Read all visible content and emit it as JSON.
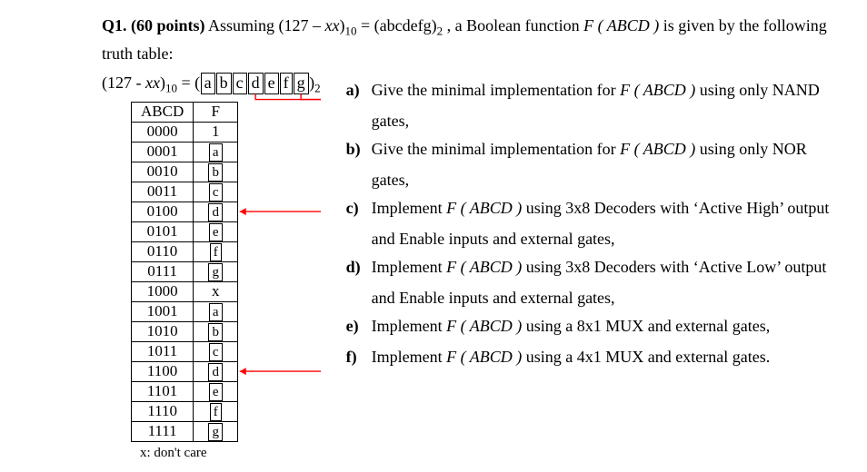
{
  "question": {
    "label": "Q1. (60 points)",
    "intro_pre": " Assuming (127 – ",
    "xx": "xx",
    "intro_mid1": ")",
    "sub1": "10",
    "intro_mid2": " = (abcdefg)",
    "sub2": "2",
    "intro_mid3": " , a Boolean function ",
    "func": "F ( ABCD )",
    "intro_post": " is given by the following truth table:"
  },
  "equation": {
    "pre": "(127 - ",
    "xx": "xx",
    "mid1": ")",
    "sub1": "10",
    "mid2": " = (",
    "letters": [
      "a",
      "b",
      "c",
      "d",
      "e",
      "f",
      "g"
    ],
    "mid3": ")",
    "sub2": "2"
  },
  "truth_table": {
    "header_left": "ABCD",
    "header_right": "F",
    "rows": [
      {
        "abcd": "0000",
        "f": "1",
        "boxed": false
      },
      {
        "abcd": "0001",
        "f": "a",
        "boxed": true
      },
      {
        "abcd": "0010",
        "f": "b",
        "boxed": true
      },
      {
        "abcd": "0011",
        "f": "c",
        "boxed": true
      },
      {
        "abcd": "0100",
        "f": "d",
        "boxed": true
      },
      {
        "abcd": "0101",
        "f": "e",
        "boxed": true
      },
      {
        "abcd": "0110",
        "f": "f",
        "boxed": true
      },
      {
        "abcd": "0111",
        "f": "g",
        "boxed": true
      },
      {
        "abcd": "1000",
        "f": "x",
        "boxed": false
      },
      {
        "abcd": "1001",
        "f": "a",
        "boxed": true
      },
      {
        "abcd": "1010",
        "f": "b",
        "boxed": true
      },
      {
        "abcd": "1011",
        "f": "c",
        "boxed": true
      },
      {
        "abcd": "1100",
        "f": "d",
        "boxed": true
      },
      {
        "abcd": "1101",
        "f": "e",
        "boxed": true
      },
      {
        "abcd": "1110",
        "f": "f",
        "boxed": true
      },
      {
        "abcd": "1111",
        "f": "g",
        "boxed": true
      }
    ],
    "footnote": "x: don't care",
    "arrow_color": "#ff0000",
    "arrow_stroke": 1.4
  },
  "parts": {
    "a": {
      "lbl": "a)",
      "line1": "Give the minimal implementation for ",
      "func": "F ( ABCD )",
      "line1b": " using only NAND",
      "line2": "gates,"
    },
    "b": {
      "lbl": "b)",
      "line1": "Give the minimal implementation for ",
      "func": "F ( ABCD )",
      "line1b": " using only NOR",
      "line2": "gates,"
    },
    "c": {
      "lbl": "c)",
      "line1": "Implement ",
      "func": "F ( ABCD )",
      "line1b": " using 3x8 Decoders with ‘Active High’ output",
      "line2": "and Enable inputs and external gates,"
    },
    "d": {
      "lbl": "d)",
      "line1": "Implement ",
      "func": "F ( ABCD )",
      "line1b": " using 3x8 Decoders with ‘Active Low’ output",
      "line2": "and Enable inputs and external gates,"
    },
    "e": {
      "lbl": "e)",
      "line1": "Implement ",
      "func": "F ( ABCD )",
      "line1b": " using a 8x1 MUX and external gates,"
    },
    "f": {
      "lbl": "f)",
      "line1": "Implement ",
      "func": "F ( ABCD )",
      "line1b": " using a 4x1 MUX and external gates."
    }
  }
}
